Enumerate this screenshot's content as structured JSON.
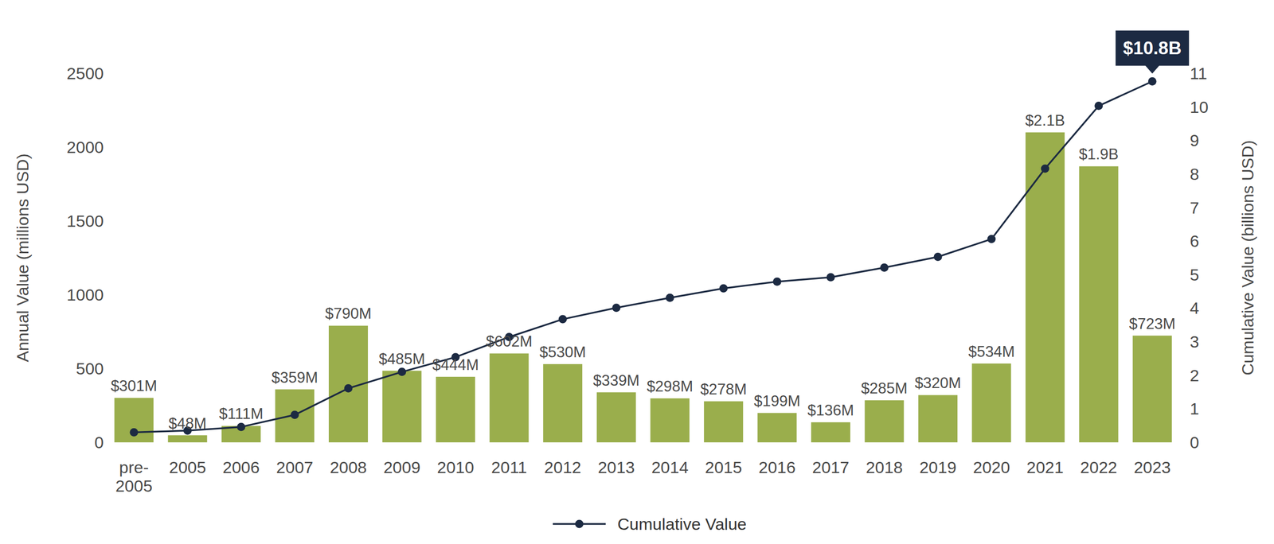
{
  "chart_data": {
    "type": "bar",
    "categories": [
      "pre-2005",
      "2005",
      "2006",
      "2007",
      "2008",
      "2009",
      "2010",
      "2011",
      "2012",
      "2013",
      "2014",
      "2015",
      "2016",
      "2017",
      "2018",
      "2019",
      "2020",
      "2021",
      "2022",
      "2023"
    ],
    "y_label": "Annual Value (millions USD)",
    "y2_label": "Cumulative Value (billions USD)",
    "ylim": [
      0,
      2500
    ],
    "yticks": [
      0,
      500,
      1000,
      1500,
      2000,
      2500
    ],
    "y2lim": [
      0,
      11
    ],
    "y2ticks": [
      0,
      1,
      2,
      3,
      4,
      5,
      6,
      7,
      8,
      9,
      10,
      11
    ],
    "grid": false,
    "legend": "bottom",
    "series": [
      {
        "type": "bar",
        "color": "#9aae4c",
        "data_labels": true,
        "values": [
          301,
          48,
          111,
          359,
          790,
          485,
          444,
          602,
          530,
          339,
          298,
          278,
          199,
          136,
          285,
          320,
          534,
          2100,
          1870,
          723
        ],
        "value_labels": [
          "$301M",
          "$48M",
          "$111M",
          "$359M",
          "$790M",
          "$485M",
          "$444M",
          "$602M",
          "$530M",
          "$339M",
          "$298M",
          "$278M",
          "$199M",
          "$136M",
          "$285M",
          "$320M",
          "$534M",
          "$2.1B",
          "$1.9B",
          "$723M"
        ]
      },
      {
        "name": "Cumulative Value",
        "type": "line",
        "axis": "y2",
        "color": "#1c2a42",
        "marker": "circle",
        "line_style": "solid",
        "values": [
          0.3,
          0.35,
          0.46,
          0.82,
          1.61,
          2.1,
          2.54,
          3.14,
          3.67,
          4.01,
          4.31,
          4.59,
          4.79,
          4.92,
          5.21,
          5.53,
          6.06,
          8.16,
          10.03,
          10.76
        ],
        "value_labels": [
          null,
          null,
          null,
          null,
          null,
          null,
          null,
          null,
          null,
          null,
          null,
          null,
          null,
          null,
          null,
          null,
          null,
          null,
          null,
          "$10.8B"
        ]
      }
    ]
  }
}
